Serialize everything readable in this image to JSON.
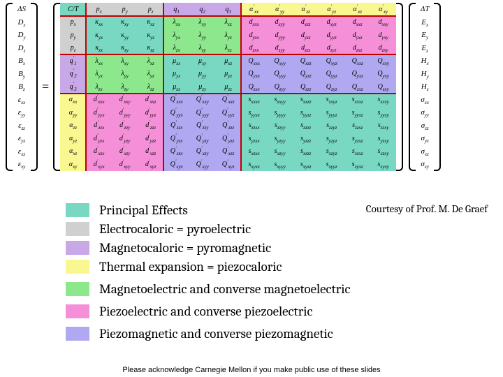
{
  "colors": {
    "teal": "#79d8c2",
    "grey": "#d0d0d0",
    "violet": "#c9a8e8",
    "lemon": "#f8f790",
    "green": "#8de88d",
    "pink": "#f590d8",
    "lilac": "#b0a8f0",
    "white": "#ffffff",
    "red": "#c00000"
  },
  "left_vector": [
    "ΔS",
    "D_x",
    "D_y",
    "D_z",
    "B_x",
    "B_y",
    "B_z",
    "ε_xx",
    "ε_yy",
    "ε_zz",
    "ε_yz",
    "ε_xz",
    "ε_xy"
  ],
  "right_vector": [
    "ΔT",
    "E_x",
    "E_y",
    "E_z",
    "H_x",
    "H_y",
    "H_z",
    "σ_xx",
    "σ_yy",
    "σ_zz",
    "σ_yz",
    "σ_xz",
    "σ_xy"
  ],
  "header_row": [
    "C/T",
    "p_x",
    "p_y",
    "p_z",
    "q_1",
    "q_2",
    "q_3",
    "α'_xx",
    "α'_yy",
    "α'_zz",
    "α'_yz",
    "α'_xz",
    "α'_xy"
  ],
  "block_rows": [
    {
      "head": "p_x",
      "a": [
        "κ_xx",
        "κ_xy",
        "κ_xz"
      ],
      "b": [
        "λ_xx",
        "λ_xy",
        "λ_xz"
      ],
      "c": [
        "d_xxx",
        "d_xyy",
        "d_xzz",
        "d_xyz",
        "d_xxz",
        "d_xxy"
      ]
    },
    {
      "head": "p_y",
      "a": [
        "κ_yx",
        "κ_yy",
        "κ_yz"
      ],
      "b": [
        "λ_yx",
        "λ_yy",
        "λ_yz"
      ],
      "c": [
        "d_yxx",
        "d_yyy",
        "d_yzz",
        "d_yyz",
        "d_yxz",
        "d_yxy"
      ]
    },
    {
      "head": "p_z",
      "a": [
        "κ_zx",
        "κ_zy",
        "κ_zz"
      ],
      "b": [
        "λ_zx",
        "λ_zy",
        "λ_zz"
      ],
      "c": [
        "d_zxx",
        "d_zyy",
        "d_zzz",
        "d_zyz",
        "d_zxz",
        "d_zxy"
      ]
    },
    {
      "head": "q'_1",
      "a": [
        "λ_xx",
        "λ_xy",
        "λ_xz"
      ],
      "b": [
        "μ_xx",
        "μ_xy",
        "μ_xz"
      ],
      "c": [
        "Q_xxx",
        "Q_xyy",
        "Q_xzz",
        "Q_xyz",
        "Q_xxz",
        "Q_xxy"
      ]
    },
    {
      "head": "q'_2",
      "a": [
        "λ_yx",
        "λ_yy",
        "λ_yz"
      ],
      "b": [
        "μ_yx",
        "μ_yy",
        "μ_yz"
      ],
      "c": [
        "Q_yxx",
        "Q_yyy",
        "Q_yzz",
        "Q_yyz",
        "Q_yxz",
        "Q_yxy"
      ]
    },
    {
      "head": "q'_3",
      "a": [
        "λ_zx",
        "λ_zy",
        "λ_zz"
      ],
      "b": [
        "μ_zx",
        "μ_zy",
        "μ_zz"
      ],
      "c": [
        "Q_zxx",
        "Q_zyy",
        "Q_zzz",
        "Q_zyz",
        "Q_zxz",
        "Q_zxy"
      ]
    },
    {
      "head": "α_xx",
      "a": [
        "d'_xxx",
        "d'_xxy",
        "d'_xxz"
      ],
      "b": [
        "Q'_xxx",
        "Q'_xxy",
        "Q'_xxz"
      ],
      "c": [
        "s_xxxx",
        "s_xxyy",
        "s_xxzz",
        "s_xxyz",
        "s_xxxz",
        "s_xxxy"
      ]
    },
    {
      "head": "α_yy",
      "a": [
        "d'_yyx",
        "d'_yyy",
        "d'_yyz"
      ],
      "b": [
        "Q'_yyx",
        "Q'_yyy",
        "Q'_yyz"
      ],
      "c": [
        "s_yyxx",
        "s_yyyy",
        "s_yyzz",
        "s_yyyz",
        "s_yyxz",
        "s_yyxy"
      ]
    },
    {
      "head": "α_zz",
      "a": [
        "d'_zzx",
        "d'_zzy",
        "d'_zzz"
      ],
      "b": [
        "Q'_zzx",
        "Q'_zzy",
        "Q'_zzz"
      ],
      "c": [
        "s_zzxx",
        "s_zzyy",
        "s_zzzz",
        "s_zzyz",
        "s_zzxz",
        "s_zzxy"
      ]
    },
    {
      "head": "α_yz",
      "a": [
        "d'_yzx",
        "d'_yzy",
        "d'_yzz"
      ],
      "b": [
        "Q'_yzx",
        "Q'_yzy",
        "Q'_yzz"
      ],
      "c": [
        "s_yzxx",
        "s_yzyy",
        "s_yzzz",
        "s_yzyz",
        "s_yzxz",
        "s_yzxy"
      ]
    },
    {
      "head": "α_xz",
      "a": [
        "d'_xzx",
        "d'_xzy",
        "d'_xzz"
      ],
      "b": [
        "Q'_xzx",
        "Q'_xzy",
        "Q'_xzz"
      ],
      "c": [
        "s_xzxx",
        "s_xzyy",
        "s_xzzz",
        "s_xzyz",
        "s_xzxz",
        "s_xzxy"
      ]
    },
    {
      "head": "α_xy",
      "a": [
        "d'_xyx",
        "d'_xyy",
        "d'_xyz"
      ],
      "b": [
        "Q'_xyx",
        "Q'_xyy",
        "Q'_xyz"
      ],
      "c": [
        "s_xyxx",
        "s_xyyy",
        "s_xyzz",
        "s_xyyz",
        "s_xyxz",
        "s_xyxy"
      ]
    }
  ],
  "block_colors": {
    "row0_col0": "teal",
    "row0_a": "grey",
    "row0_b": "violet",
    "row0_c": "lemon",
    "rows_1_3_col0": "grey",
    "rows_1_3_a": "teal",
    "rows_1_3_b": "green",
    "rows_1_3_c": "pink",
    "rows_4_6_col0": "violet",
    "rows_4_6_a": "green",
    "rows_4_6_b": "teal",
    "rows_4_6_c": "lilac",
    "rows_7_12_col0": "lemon",
    "rows_7_12_a": "pink",
    "rows_7_12_b": "lilac",
    "rows_7_12_c": "teal"
  },
  "legend": [
    {
      "color": "teal",
      "label": "Principal Effects"
    },
    {
      "color": "grey",
      "label": "Electrocaloric = pyroelectric"
    },
    {
      "color": "violet",
      "label": "Magnetocaloric = pyromagnetic"
    },
    {
      "color": "lemon",
      "label": "Thermal expansion = piezocaloric"
    },
    {
      "color": "green",
      "label": "Magnetoelectric and converse magnetoelectric"
    },
    {
      "color": "pink",
      "label": "Piezoelectric and converse piezoelectric"
    },
    {
      "color": "lilac",
      "label": "Piezomagnetic and converse piezomagnetic"
    }
  ],
  "courtesy": "Courtesy of Prof. M. De Graef",
  "footer": "Please acknowledge Carnegie Mellon if you make public use of these slides",
  "equals": "="
}
